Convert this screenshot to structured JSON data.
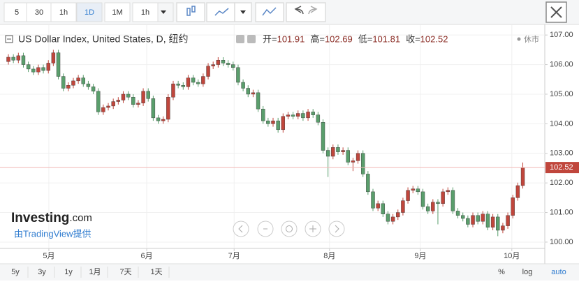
{
  "toolbar": {
    "intervals": [
      "5",
      "30",
      "1h",
      "1D",
      "1M",
      "1h"
    ]
  },
  "chart_data": {
    "type": "candlestick",
    "title": "US Dollar Index, United States, D, 纽约",
    "ohlc_labels": [
      "开=",
      "高=",
      "低=",
      "收="
    ],
    "status": "休市",
    "up_color": "#c0463c",
    "down_color": "#5a9e6c",
    "grid": true,
    "ylim": [
      99.81,
      107.24
    ],
    "yticks": [
      {
        "value": 100,
        "label": "100.00"
      },
      {
        "value": 101,
        "label": "101.00"
      },
      {
        "value": 102,
        "label": "102.00"
      },
      {
        "value": 103,
        "label": "103.00"
      },
      {
        "value": 104,
        "label": "104.00"
      },
      {
        "value": 105,
        "label": "105.00"
      },
      {
        "value": 106,
        "label": "106.00"
      },
      {
        "value": 107,
        "label": "107.00"
      }
    ],
    "xlim": [
      -1.68,
      107.4
    ],
    "xticks": [
      {
        "value": 8.1,
        "label": "5月"
      },
      {
        "value": 27.7,
        "label": "6月"
      },
      {
        "value": 45.2,
        "label": "7月"
      },
      {
        "value": 64.3,
        "label": "8月"
      },
      {
        "value": 82.5,
        "label": "9月"
      },
      {
        "value": 100.8,
        "label": "10月"
      }
    ],
    "open": [
      106.1,
      106.25,
      106.15,
      106.3,
      106.0,
      105.85,
      105.75,
      105.9,
      105.8,
      106.05,
      106.4,
      105.6,
      105.2,
      105.3,
      105.45,
      105.55,
      105.35,
      105.25,
      105.1,
      104.4,
      104.55,
      104.6,
      104.75,
      104.8,
      105.0,
      104.9,
      104.65,
      104.7,
      105.1,
      104.85,
      104.2,
      104.1,
      104.15,
      104.9,
      105.35,
      105.3,
      105.25,
      105.55,
      105.4,
      105.35,
      105.6,
      105.95,
      106.0,
      106.15,
      106.05,
      106.0,
      105.9,
      105.4,
      105.2,
      105.0,
      105.05,
      104.5,
      104.1,
      104.0,
      104.1,
      103.8,
      104.25,
      104.3,
      104.25,
      104.35,
      104.2,
      104.4,
      104.3,
      104.05,
      103.1,
      102.9,
      103.2,
      103.05,
      103.1,
      102.7,
      102.75,
      103.0,
      102.3,
      101.7,
      101.15,
      101.3,
      100.95,
      100.7,
      100.85,
      101.0,
      101.4,
      101.75,
      101.8,
      101.7,
      101.2,
      101.05,
      101.35,
      101.3,
      101.7,
      101.75,
      101.05,
      100.9,
      100.8,
      100.6,
      100.9,
      100.7,
      100.95,
      100.5,
      100.85,
      100.4,
      100.55,
      100.9,
      101.5,
      101.91
    ],
    "high": [
      106.35,
      106.35,
      106.4,
      106.4,
      106.1,
      105.95,
      106.0,
      106.0,
      106.15,
      106.5,
      106.5,
      105.7,
      105.4,
      105.55,
      105.65,
      105.65,
      105.45,
      105.35,
      105.2,
      104.65,
      104.7,
      104.85,
      104.9,
      105.1,
      105.1,
      105.0,
      104.8,
      105.2,
      105.2,
      104.95,
      104.3,
      104.25,
      105.0,
      105.45,
      105.45,
      105.4,
      105.65,
      105.65,
      105.5,
      105.7,
      106.05,
      106.1,
      106.25,
      106.25,
      106.15,
      106.1,
      106.0,
      105.5,
      105.3,
      105.15,
      105.15,
      104.6,
      104.2,
      104.2,
      104.2,
      104.35,
      104.4,
      104.4,
      104.45,
      104.45,
      104.5,
      104.5,
      104.4,
      104.15,
      103.2,
      103.3,
      103.3,
      103.2,
      103.2,
      102.85,
      103.1,
      103.1,
      102.4,
      101.8,
      101.4,
      101.4,
      101.05,
      100.95,
      101.1,
      101.5,
      101.85,
      101.9,
      101.9,
      101.8,
      101.3,
      101.45,
      101.45,
      101.8,
      101.85,
      101.85,
      101.15,
      101.0,
      100.9,
      101.0,
      101.0,
      101.05,
      101.05,
      100.95,
      100.95,
      100.65,
      101.0,
      101.6,
      102.01,
      102.69
    ],
    "low": [
      106.0,
      106.05,
      106.05,
      105.9,
      105.75,
      105.65,
      105.65,
      105.7,
      105.7,
      105.95,
      105.5,
      105.1,
      105.1,
      105.2,
      105.35,
      105.25,
      105.15,
      105.0,
      104.3,
      104.3,
      104.45,
      104.5,
      104.65,
      104.7,
      104.8,
      104.55,
      104.55,
      104.6,
      104.75,
      104.1,
      104.0,
      104.0,
      104.05,
      104.8,
      105.2,
      105.15,
      105.15,
      105.3,
      105.25,
      105.25,
      105.5,
      105.85,
      105.9,
      105.95,
      105.9,
      105.8,
      105.3,
      105.1,
      104.9,
      104.9,
      104.4,
      104.0,
      103.9,
      103.9,
      103.7,
      103.7,
      104.15,
      104.15,
      104.15,
      104.1,
      104.1,
      104.2,
      103.95,
      103.0,
      102.2,
      102.8,
      102.95,
      102.95,
      102.6,
      102.4,
      102.65,
      102.2,
      101.6,
      101.05,
      101.05,
      100.85,
      100.6,
      100.6,
      100.75,
      100.9,
      101.3,
      101.65,
      101.6,
      101.1,
      100.95,
      100.95,
      100.6,
      101.2,
      101.6,
      100.95,
      100.8,
      100.7,
      100.5,
      100.5,
      100.6,
      100.6,
      100.4,
      100.4,
      100.2,
      100.3,
      100.45,
      100.8,
      101.4,
      101.81
    ],
    "close": [
      106.25,
      106.15,
      106.3,
      106.0,
      105.85,
      105.75,
      105.9,
      105.8,
      106.05,
      106.4,
      105.6,
      105.2,
      105.3,
      105.45,
      105.55,
      105.35,
      105.25,
      105.1,
      104.4,
      104.55,
      104.6,
      104.75,
      104.8,
      105.0,
      104.9,
      104.65,
      104.7,
      105.1,
      104.85,
      104.2,
      104.1,
      104.15,
      104.9,
      105.35,
      105.3,
      105.25,
      105.55,
      105.4,
      105.35,
      105.6,
      105.95,
      106.0,
      106.15,
      106.05,
      106.0,
      105.9,
      105.4,
      105.2,
      105.0,
      105.05,
      104.5,
      104.1,
      104.0,
      104.1,
      103.8,
      104.25,
      104.3,
      104.25,
      104.35,
      104.2,
      104.4,
      104.3,
      104.05,
      103.1,
      102.9,
      103.2,
      103.05,
      103.1,
      102.7,
      102.75,
      103.0,
      102.3,
      101.7,
      101.15,
      101.3,
      100.95,
      100.7,
      100.85,
      101.0,
      101.4,
      101.75,
      101.8,
      101.7,
      101.2,
      101.05,
      101.35,
      101.3,
      101.7,
      101.75,
      101.05,
      100.9,
      100.8,
      100.6,
      100.9,
      100.7,
      100.95,
      100.5,
      100.85,
      100.4,
      100.55,
      100.9,
      101.5,
      101.91,
      102.52
    ]
  },
  "branding": {
    "logo": "Investing",
    "logo_suffix": ".com",
    "provider": "由TradingView提供"
  },
  "footer": {
    "ranges": [
      "5y",
      "3y",
      "1y",
      "1月",
      "7天",
      "1天"
    ],
    "options": [
      "%",
      "log",
      "auto"
    ]
  }
}
